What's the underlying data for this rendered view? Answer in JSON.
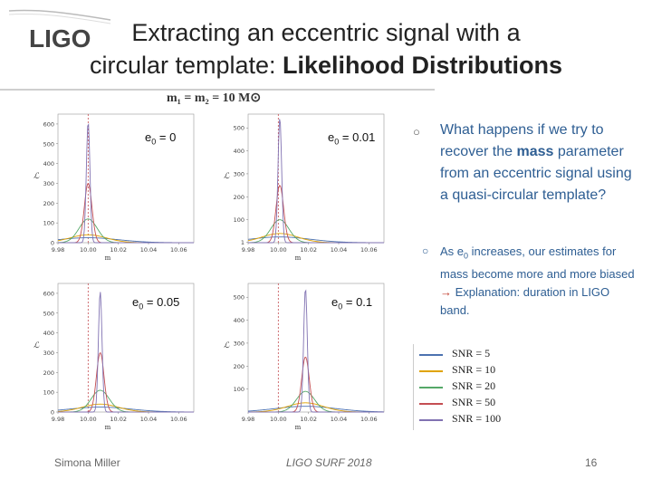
{
  "logo": {
    "text": "LIGO"
  },
  "title": {
    "line1": "Extracting an eccentric signal with a",
    "line2_plain": "circular template: ",
    "line2_bold": "Likelihood Distributions"
  },
  "mass_label": "m₁ = m₂ = 10 M⊙",
  "chart_data": [
    {
      "type": "line",
      "ecc_label": "e",
      "ecc_sub": "0",
      "ecc_value": " = 0",
      "ylabel": "ℒ",
      "xlabel": "m",
      "xticks": [
        "9.98",
        "10.00",
        "10.02",
        "10.04",
        "10.06"
      ],
      "yticks": [
        "0",
        "100",
        "200",
        "300",
        "400",
        "500",
        "600"
      ],
      "ylim": [
        0,
        650
      ],
      "xlim": [
        9.98,
        10.07
      ],
      "true_mass": 10.0,
      "series": [
        {
          "name": "SNR = 5",
          "peak_x": 10.0,
          "peak": 25,
          "width": 0.02
        },
        {
          "name": "SNR = 10",
          "peak_x": 10.0,
          "peak": 40,
          "width": 0.012
        },
        {
          "name": "SNR = 20",
          "peak_x": 10.0,
          "peak": 120,
          "width": 0.006
        },
        {
          "name": "SNR = 50",
          "peak_x": 10.0,
          "peak": 300,
          "width": 0.0025
        },
        {
          "name": "SNR = 100",
          "peak_x": 10.0,
          "peak": 610,
          "width": 0.0012
        }
      ]
    },
    {
      "type": "line",
      "ecc_label": "e",
      "ecc_sub": "0",
      "ecc_value": " = 0.01",
      "ylabel": "ℒ",
      "xlabel": "m",
      "xticks": [
        "9.98",
        "10.00",
        "10.02",
        "10.04",
        "10.06"
      ],
      "yticks": [
        "1",
        "100",
        "200",
        "300",
        "400",
        "500"
      ],
      "ylim": [
        0,
        560
      ],
      "xlim": [
        9.98,
        10.07
      ],
      "true_mass": 10.0,
      "series": [
        {
          "name": "SNR = 5",
          "peak_x": 10.001,
          "peak": 25,
          "width": 0.02
        },
        {
          "name": "SNR = 10",
          "peak_x": 10.001,
          "peak": 40,
          "width": 0.012
        },
        {
          "name": "SNR = 20",
          "peak_x": 10.001,
          "peak": 100,
          "width": 0.006
        },
        {
          "name": "SNR = 50",
          "peak_x": 10.001,
          "peak": 250,
          "width": 0.0025
        },
        {
          "name": "SNR = 100",
          "peak_x": 10.001,
          "peak": 545,
          "width": 0.0012
        }
      ]
    },
    {
      "type": "line",
      "ecc_label": "e",
      "ecc_sub": "0",
      "ecc_value": " = 0.05",
      "ylabel": "ℒ",
      "xlabel": "m",
      "xticks": [
        "9.98",
        "10.00",
        "10.02",
        "10.04",
        "10.06"
      ],
      "yticks": [
        "0",
        "100",
        "200",
        "300",
        "400",
        "500",
        "600"
      ],
      "ylim": [
        0,
        650
      ],
      "xlim": [
        9.98,
        10.07
      ],
      "true_mass": 10.0,
      "series": [
        {
          "name": "SNR = 5",
          "peak_x": 10.008,
          "peak": 25,
          "width": 0.02
        },
        {
          "name": "SNR = 10",
          "peak_x": 10.008,
          "peak": 40,
          "width": 0.012
        },
        {
          "name": "SNR = 20",
          "peak_x": 10.008,
          "peak": 110,
          "width": 0.006
        },
        {
          "name": "SNR = 50",
          "peak_x": 10.008,
          "peak": 300,
          "width": 0.0025
        },
        {
          "name": "SNR = 100",
          "peak_x": 10.008,
          "peak": 610,
          "width": 0.0012
        }
      ]
    },
    {
      "type": "line",
      "ecc_label": "e",
      "ecc_sub": "0",
      "ecc_value": " = 0.1",
      "ylabel": "ℒ",
      "xlabel": "m",
      "xticks": [
        "9.98",
        "10.00",
        "10.02",
        "10.04",
        "10.06"
      ],
      "yticks": [
        "100",
        "200",
        "300",
        "400",
        "500"
      ],
      "ylim": [
        0,
        560
      ],
      "xlim": [
        9.98,
        10.07
      ],
      "true_mass": 10.0,
      "series": [
        {
          "name": "SNR = 5",
          "peak_x": 10.018,
          "peak": 25,
          "width": 0.02
        },
        {
          "name": "SNR = 10",
          "peak_x": 10.018,
          "peak": 40,
          "width": 0.012
        },
        {
          "name": "SNR = 20",
          "peak_x": 10.018,
          "peak": 90,
          "width": 0.006
        },
        {
          "name": "SNR = 50",
          "peak_x": 10.018,
          "peak": 240,
          "width": 0.0025
        },
        {
          "name": "SNR = 100",
          "peak_x": 10.018,
          "peak": 540,
          "width": 0.0012
        }
      ]
    }
  ],
  "legend": [
    {
      "label": "SNR = 5",
      "color": "#4c72b0"
    },
    {
      "label": "SNR = 10",
      "color": "#e0a300"
    },
    {
      "label": "SNR = 20",
      "color": "#55a868"
    },
    {
      "label": "SNR = 50",
      "color": "#c44e52"
    },
    {
      "label": "SNR = 100",
      "color": "#8172b2"
    }
  ],
  "colors": {
    "accent": "#2e5e93",
    "true_mass_line": "#c44e52",
    "logo": "#444444"
  },
  "bullets": {
    "b1_a": "What happens if we try to recover the ",
    "b1_bold": "mass",
    "b1_b": " parameter from an eccentric signal using a quasi-circular template?",
    "b2_a": "As e",
    "b2_sub": "0",
    "b2_b": " increases, our estimates for mass become more and more biased ",
    "b2_arrow": "→",
    "b2_c": " Explanation: duration in LIGO band.",
    "b1_marker": "○",
    "b2_marker": "○"
  },
  "footer": {
    "author": "Simona Miller",
    "event": "LIGO SURF 2018",
    "page": "16"
  }
}
